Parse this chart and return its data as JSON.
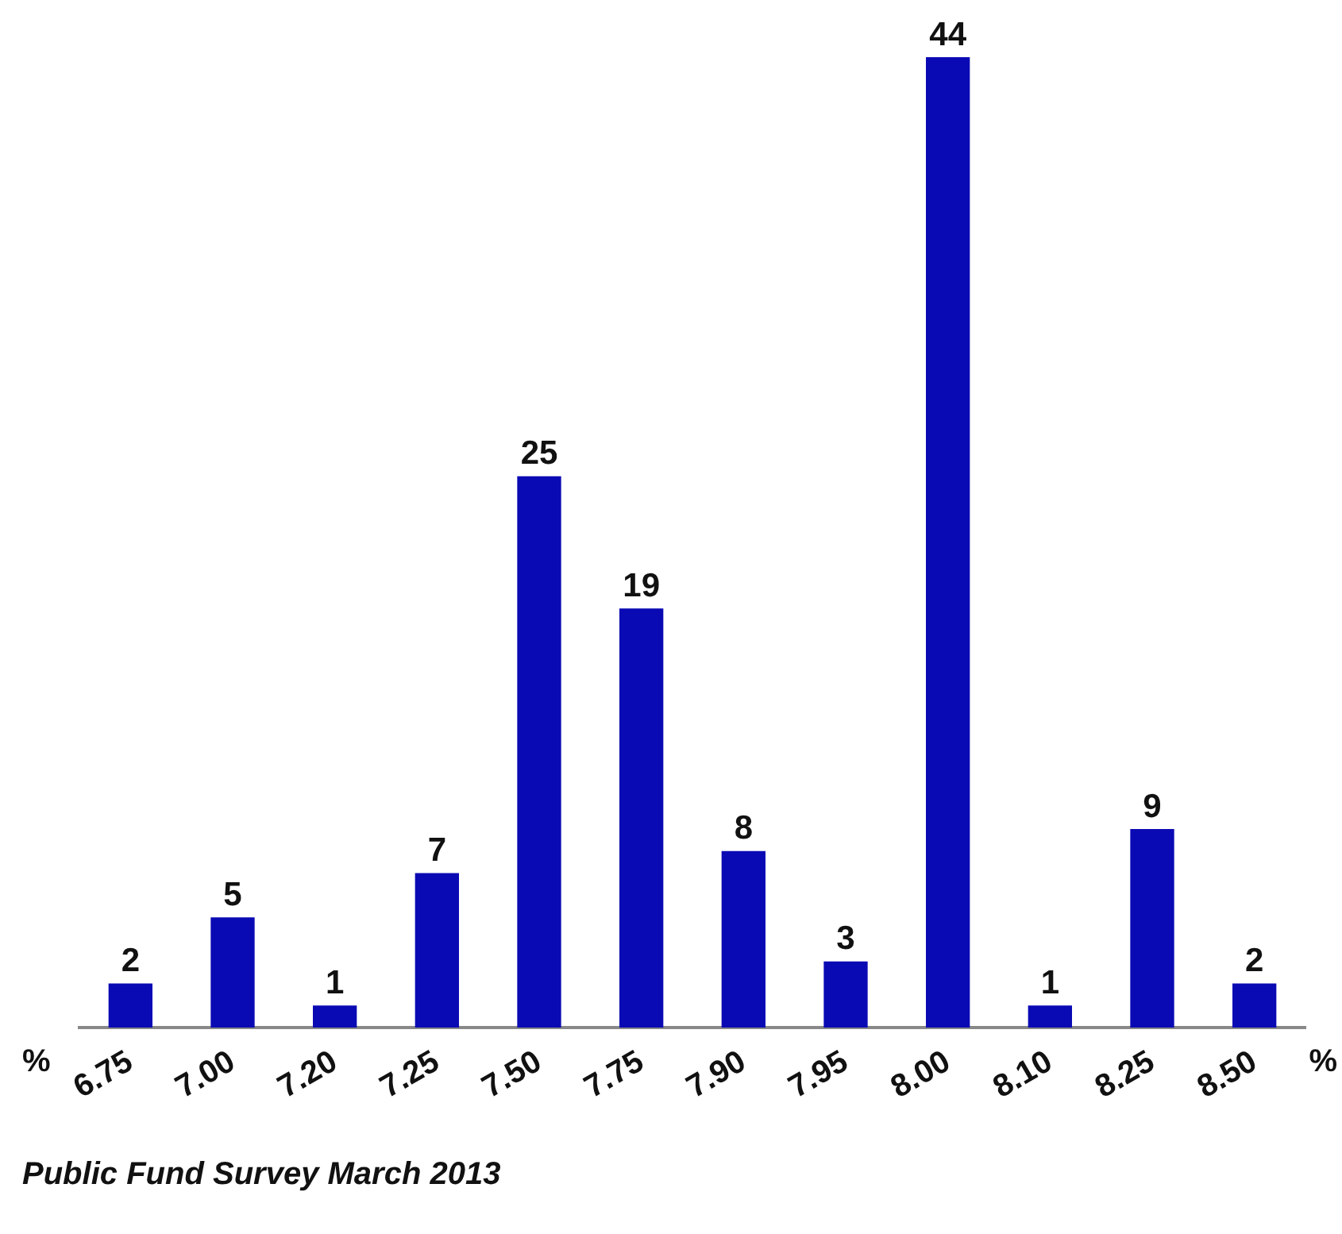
{
  "chart_data": {
    "type": "bar",
    "categories": [
      "6.75",
      "7.00",
      "7.20",
      "7.25",
      "7.50",
      "7.75",
      "7.90",
      "7.95",
      "8.00",
      "8.10",
      "8.25",
      "8.50"
    ],
    "values": [
      2,
      5,
      1,
      7,
      25,
      19,
      8,
      3,
      44,
      1,
      9,
      2
    ],
    "color": "#0a0ab4",
    "data_labels": true,
    "grid": false,
    "legend": false,
    "xlabel": "%",
    "annotations": [
      "Public Fund Survey March 2013"
    ]
  }
}
